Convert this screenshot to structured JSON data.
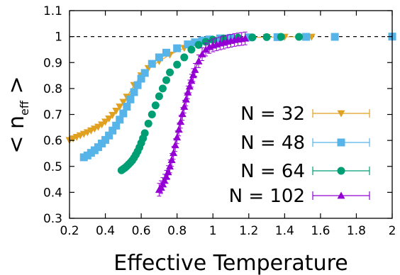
{
  "chart_data": {
    "type": "scatter",
    "xlabel": "Effective Temperature",
    "ylabel_main": "< n",
    "ylabel_sub": "eff",
    "ylabel_close": " >",
    "xlim": [
      0.2,
      2.0
    ],
    "ylim": [
      0.3,
      1.1
    ],
    "x_ticks": [
      0.2,
      0.4,
      0.6,
      0.8,
      1,
      1.2,
      1.4,
      1.6,
      1.8,
      2
    ],
    "x_tick_labels": [
      "0.2",
      "0.4",
      "0.6",
      "0.8",
      "1",
      "1.2",
      "1.4",
      "1.6",
      "1.8",
      "2"
    ],
    "y_ticks": [
      0.3,
      0.4,
      0.5,
      0.6,
      0.7,
      0.8,
      0.9,
      1,
      1.1
    ],
    "y_tick_labels": [
      "0.3",
      "0.4",
      "0.5",
      "0.6",
      "0.7",
      "0.8",
      "0.9",
      "1",
      "1.1"
    ],
    "reference_line": {
      "y": 1.0,
      "style": "dashed",
      "color": "#000000"
    },
    "legend_position": "right",
    "series": [
      {
        "name": "N = 32",
        "color": "#e0a020",
        "marker": "triangle-down",
        "connect": true,
        "points": [
          [
            0.2,
            0.601
          ],
          [
            0.22,
            0.607
          ],
          [
            0.24,
            0.613
          ],
          [
            0.26,
            0.619
          ],
          [
            0.28,
            0.625
          ],
          [
            0.3,
            0.631
          ],
          [
            0.32,
            0.638
          ],
          [
            0.34,
            0.645
          ],
          [
            0.36,
            0.652
          ],
          [
            0.38,
            0.661
          ],
          [
            0.4,
            0.672
          ],
          [
            0.42,
            0.684
          ],
          [
            0.44,
            0.698
          ],
          [
            0.46,
            0.714
          ],
          [
            0.48,
            0.73
          ],
          [
            0.5,
            0.748
          ],
          [
            0.52,
            0.768
          ],
          [
            0.56,
            0.813
          ],
          [
            0.6,
            0.85
          ],
          [
            0.64,
            0.878
          ],
          [
            0.7,
            0.905
          ],
          [
            0.76,
            0.93
          ],
          [
            0.84,
            0.956
          ],
          [
            0.92,
            0.975
          ],
          [
            1.0,
            0.986
          ],
          [
            1.1,
            0.993
          ],
          [
            1.2,
            0.996
          ],
          [
            1.3,
            0.998
          ],
          [
            1.4,
            0.999
          ],
          [
            1.5,
            0.999
          ],
          [
            1.55,
            0.999
          ]
        ]
      },
      {
        "name": "N = 48",
        "color": "#56b4e9",
        "marker": "square",
        "connect": false,
        "points": [
          [
            0.28,
            0.535
          ],
          [
            0.3,
            0.542
          ],
          [
            0.32,
            0.552
          ],
          [
            0.34,
            0.562
          ],
          [
            0.36,
            0.574
          ],
          [
            0.38,
            0.588
          ],
          [
            0.4,
            0.602
          ],
          [
            0.42,
            0.619
          ],
          [
            0.44,
            0.638
          ],
          [
            0.46,
            0.657
          ],
          [
            0.48,
            0.68
          ],
          [
            0.5,
            0.704
          ],
          [
            0.52,
            0.73
          ],
          [
            0.54,
            0.758
          ],
          [
            0.56,
            0.786
          ],
          [
            0.58,
            0.813
          ],
          [
            0.6,
            0.838
          ],
          [
            0.62,
            0.86
          ],
          [
            0.66,
            0.895
          ],
          [
            0.7,
            0.92
          ],
          [
            0.74,
            0.938
          ],
          [
            0.8,
            0.955
          ],
          [
            0.86,
            0.97
          ],
          [
            0.9,
            0.978
          ],
          [
            0.94,
            0.985
          ],
          [
            0.98,
            0.989
          ],
          [
            1.04,
            0.993
          ],
          [
            1.1,
            0.995
          ],
          [
            1.2,
            0.997
          ],
          [
            1.36,
            0.998
          ],
          [
            1.52,
            0.999
          ],
          [
            1.68,
            0.999
          ],
          [
            2.0,
            1.0
          ]
        ]
      },
      {
        "name": "N = 64",
        "color": "#009e73",
        "marker": "circle",
        "connect": false,
        "points": [
          [
            0.49,
            0.485
          ],
          [
            0.5,
            0.49
          ],
          [
            0.51,
            0.495
          ],
          [
            0.52,
            0.501
          ],
          [
            0.53,
            0.508
          ],
          [
            0.54,
            0.515
          ],
          [
            0.55,
            0.523
          ],
          [
            0.56,
            0.533
          ],
          [
            0.57,
            0.545
          ],
          [
            0.58,
            0.558
          ],
          [
            0.59,
            0.573
          ],
          [
            0.6,
            0.59
          ],
          [
            0.61,
            0.608
          ],
          [
            0.62,
            0.628
          ],
          [
            0.64,
            0.665
          ],
          [
            0.66,
            0.7
          ],
          [
            0.68,
            0.735
          ],
          [
            0.7,
            0.77
          ],
          [
            0.72,
            0.8
          ],
          [
            0.74,
            0.832
          ],
          [
            0.76,
            0.862
          ],
          [
            0.8,
            0.892
          ],
          [
            0.84,
            0.92
          ],
          [
            0.88,
            0.95
          ],
          [
            0.92,
            0.968
          ],
          [
            0.96,
            0.98
          ],
          [
            1.0,
            0.988
          ],
          [
            1.06,
            0.993
          ],
          [
            1.14,
            0.996
          ],
          [
            1.22,
            0.997
          ],
          [
            1.3,
            0.998
          ],
          [
            1.38,
            0.999
          ],
          [
            1.48,
            0.999
          ]
        ]
      },
      {
        "name": "N = 102",
        "color": "#9400d3",
        "marker": "triangle-up",
        "connect": true,
        "points": [
          [
            0.7,
            0.41
          ],
          [
            0.71,
            0.42
          ],
          [
            0.72,
            0.432
          ],
          [
            0.73,
            0.445
          ],
          [
            0.74,
            0.46
          ],
          [
            0.75,
            0.478
          ],
          [
            0.76,
            0.5
          ],
          [
            0.77,
            0.525
          ],
          [
            0.78,
            0.552
          ],
          [
            0.79,
            0.582
          ],
          [
            0.8,
            0.612
          ],
          [
            0.81,
            0.642
          ],
          [
            0.82,
            0.672
          ],
          [
            0.83,
            0.702
          ],
          [
            0.84,
            0.73
          ],
          [
            0.85,
            0.758
          ],
          [
            0.86,
            0.785
          ],
          [
            0.87,
            0.808
          ],
          [
            0.88,
            0.83
          ],
          [
            0.89,
            0.852
          ],
          [
            0.9,
            0.872
          ],
          [
            0.92,
            0.905
          ],
          [
            0.94,
            0.932
          ],
          [
            0.96,
            0.95
          ],
          [
            0.98,
            0.96
          ],
          [
            1.0,
            0.966
          ],
          [
            1.02,
            0.97
          ],
          [
            1.04,
            0.974
          ],
          [
            1.06,
            0.977
          ],
          [
            1.08,
            0.981
          ],
          [
            1.1,
            0.984
          ],
          [
            1.12,
            0.987
          ],
          [
            1.14,
            0.989
          ],
          [
            1.16,
            0.991
          ],
          [
            1.18,
            0.993
          ]
        ]
      }
    ]
  }
}
